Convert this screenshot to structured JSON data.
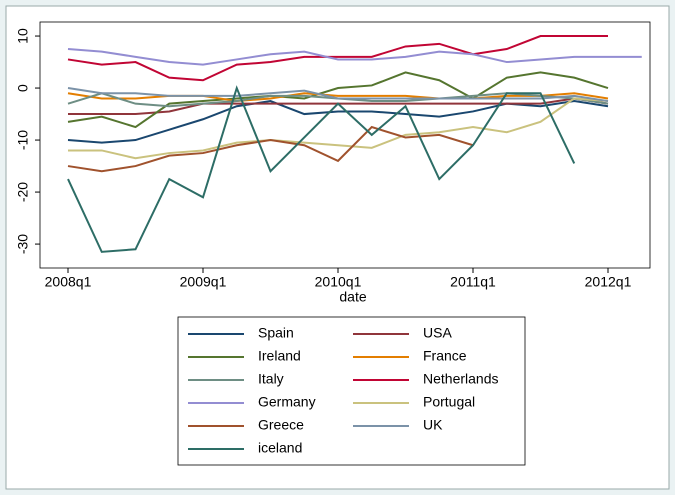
{
  "chart_data": {
    "type": "line",
    "x_label": "date",
    "categories": [
      "2008q1",
      null,
      null,
      null,
      "2009q1",
      null,
      null,
      null,
      "2010q1",
      null,
      null,
      null,
      "2011q1",
      null,
      null,
      null,
      "2012q1",
      null
    ],
    "ylim": [
      -34.6,
      12.7
    ],
    "yticks": [
      -30,
      -20,
      -10,
      0,
      10
    ],
    "series": [
      {
        "name": "Spain",
        "color": "#1a476f",
        "values": [
          -10,
          -10.5,
          -10,
          -8,
          -6,
          -3.5,
          -2.5,
          -5,
          -4.5,
          -4.5,
          -5,
          -5.5,
          -4.5,
          -3,
          -3.5,
          -2.5,
          -3.5,
          null
        ]
      },
      {
        "name": "USA",
        "color": "#90353b",
        "values": [
          -5,
          -5,
          -5,
          -4.5,
          -3,
          -3,
          -3,
          -3,
          -3,
          -3,
          -3,
          -3,
          -3,
          -3,
          -3,
          -2,
          -3,
          null
        ]
      },
      {
        "name": "Ireland",
        "color": "#55752f",
        "values": [
          -6.5,
          -5.5,
          -7.5,
          -3,
          -2.5,
          -2,
          -1.5,
          -2,
          0,
          0.5,
          3,
          1.5,
          -2,
          2,
          3,
          2,
          0,
          null
        ]
      },
      {
        "name": "France",
        "color": "#e37e00",
        "values": [
          -1,
          -2,
          -2,
          -1.5,
          -1.5,
          -2.5,
          -2,
          -1,
          -1.5,
          -1.5,
          -1.5,
          -2,
          -2,
          -1.5,
          -1.5,
          -1,
          -2,
          null
        ]
      },
      {
        "name": "Italy",
        "color": "#6e8e84",
        "values": [
          -3,
          -1,
          -3,
          -3.5,
          -3,
          -2.5,
          -1.5,
          -1.5,
          -2,
          -2.5,
          -2.5,
          -2,
          -1.5,
          -1,
          -1.5,
          -2,
          -3,
          null
        ]
      },
      {
        "name": "Netherlands",
        "color": "#c10534",
        "values": [
          5.5,
          4.5,
          5,
          2,
          1.5,
          4.5,
          5,
          6,
          6,
          6,
          8,
          8.5,
          6.5,
          7.5,
          10,
          10,
          10,
          null
        ]
      },
      {
        "name": "Germany",
        "color": "#938dd2",
        "values": [
          7.5,
          7,
          6,
          5,
          4.5,
          5.5,
          6.5,
          7,
          5.5,
          5.5,
          6,
          7,
          6.5,
          5,
          5.5,
          6,
          6,
          6
        ]
      },
      {
        "name": "Portugal",
        "color": "#cac27e",
        "values": [
          -12,
          -12,
          -13.5,
          -12.5,
          -12,
          -10.5,
          -10,
          -10.5,
          -11,
          -11.5,
          -9,
          -8.5,
          -7.5,
          -8.5,
          -6.5,
          -2,
          -2.5,
          null
        ]
      },
      {
        "name": "Greece",
        "color": "#a0522d",
        "values": [
          -15,
          -16,
          -15,
          -13,
          -12.5,
          -11,
          -10,
          -11,
          -14,
          -7.5,
          -9.5,
          -9,
          -11,
          null,
          null,
          null,
          null,
          null
        ]
      },
      {
        "name": "UK",
        "color": "#7b92a8",
        "values": [
          0,
          -1,
          -1,
          -1.5,
          -1.5,
          -1.5,
          -1,
          -0.5,
          -2,
          -2,
          -2,
          -2,
          -2,
          -2,
          -2,
          -1.5,
          -2.5,
          null
        ]
      },
      {
        "name": "iceland",
        "color": "#2d6d66",
        "values": [
          -17.5,
          -31.5,
          -31,
          -17.5,
          -21,
          0,
          -16,
          -9.5,
          -3,
          -9,
          -3.5,
          -17.5,
          -11,
          -1,
          -1,
          -14.5,
          null,
          null
        ]
      }
    ]
  }
}
